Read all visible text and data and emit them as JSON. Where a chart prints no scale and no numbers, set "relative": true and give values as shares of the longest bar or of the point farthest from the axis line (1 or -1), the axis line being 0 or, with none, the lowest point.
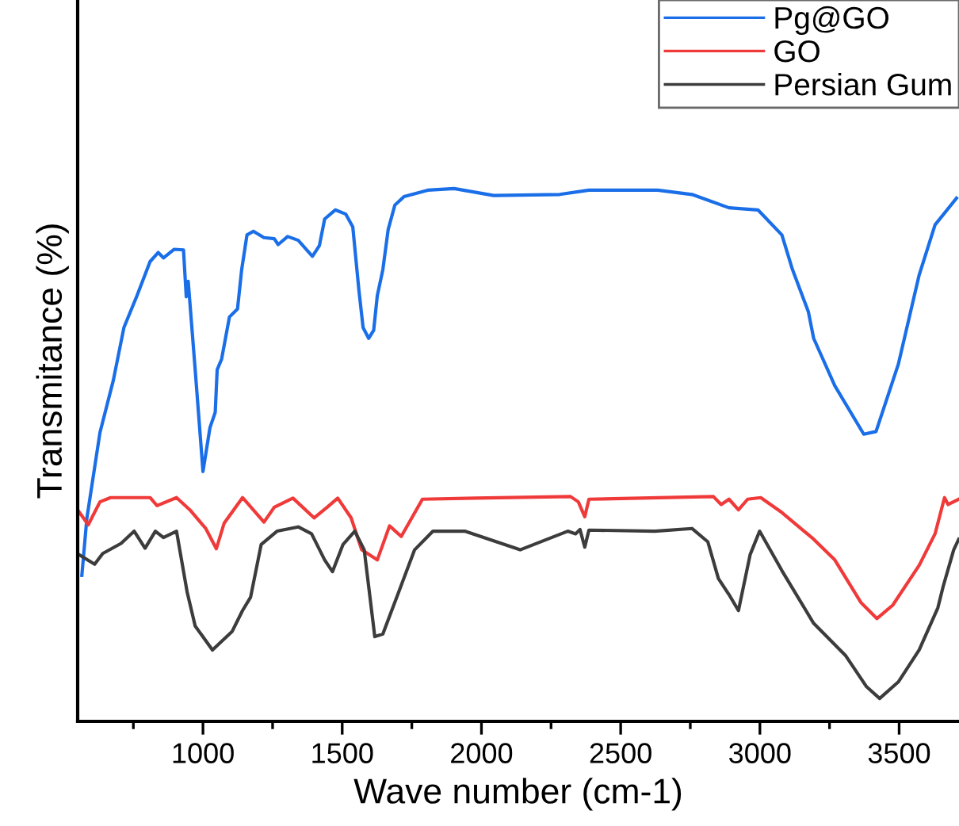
{
  "chart_data": {
    "type": "line",
    "xlabel": "Wave number (cm-1)",
    "ylabel": "Transmitance (%)",
    "relative": true,
    "legend": "top right",
    "grid": false,
    "xlim": [
      550,
      3715
    ],
    "xticks": [
      {
        "value": 750,
        "label": null
      },
      1000,
      {
        "value": 1250,
        "label": null
      },
      1500,
      {
        "value": 1750,
        "label": null
      },
      2000,
      {
        "value": 2250,
        "label": null
      },
      2500,
      {
        "value": 2750,
        "label": null
      },
      3000,
      {
        "value": 3250,
        "label": null
      },
      3500
    ],
    "series": [
      {
        "name": "Pg@GO",
        "color": "#1a6ee8",
        "x": [
          565,
          583,
          630,
          678,
          716,
          763,
          810,
          839,
          858,
          896,
          930,
          940,
          947,
          972,
          1000,
          1025,
          1044,
          1051,
          1067,
          1095,
          1124,
          1139,
          1158,
          1181,
          1219,
          1256,
          1270,
          1304,
          1342,
          1393,
          1418,
          1437,
          1475,
          1513,
          1538,
          1560,
          1575,
          1595,
          1613,
          1626,
          1646,
          1665,
          1689,
          1722,
          1807,
          1902,
          2044,
          2281,
          2386,
          2633,
          2756,
          2889,
          2993,
          3079,
          3117,
          3174,
          3193,
          3269,
          3373,
          3417,
          3497,
          3572,
          3629,
          3706
        ],
        "values": [
          0.274,
          0.381,
          0.542,
          0.64,
          0.739,
          0.799,
          0.863,
          0.88,
          0.87,
          0.886,
          0.885,
          0.797,
          0.826,
          0.66,
          0.469,
          0.551,
          0.58,
          0.66,
          0.68,
          0.759,
          0.774,
          0.848,
          0.913,
          0.92,
          0.908,
          0.906,
          0.895,
          0.91,
          0.903,
          0.873,
          0.893,
          0.943,
          0.96,
          0.952,
          0.928,
          0.809,
          0.739,
          0.719,
          0.734,
          0.799,
          0.848,
          0.923,
          0.969,
          0.985,
          0.997,
          1.0,
          0.987,
          0.989,
          0.997,
          0.997,
          0.989,
          0.964,
          0.96,
          0.913,
          0.848,
          0.769,
          0.719,
          0.63,
          0.539,
          0.544,
          0.67,
          0.838,
          0.932,
          0.982
        ]
      },
      {
        "name": "GO",
        "color": "#f03a3a",
        "x": [
          554,
          588,
          630,
          668,
          810,
          835,
          905,
          953,
          1010,
          1048,
          1076,
          1142,
          1219,
          1256,
          1323,
          1399,
          1446,
          1484,
          1532,
          1570,
          1626,
          1670,
          1712,
          1750,
          1788,
          1978,
          2320,
          2348,
          2371,
          2386,
          2833,
          2861,
          2889,
          2923,
          2956,
          3003,
          3079,
          3193,
          3269,
          3363,
          3420,
          3477,
          3572,
          3629,
          3663,
          3676,
          3714
        ],
        "values": [
          0.394,
          0.369,
          0.412,
          0.42,
          0.42,
          0.405,
          0.42,
          0.397,
          0.362,
          0.324,
          0.372,
          0.42,
          0.374,
          0.402,
          0.419,
          0.382,
          0.402,
          0.419,
          0.382,
          0.322,
          0.303,
          0.367,
          0.347,
          0.382,
          0.417,
          0.419,
          0.422,
          0.412,
          0.384,
          0.417,
          0.422,
          0.407,
          0.417,
          0.397,
          0.417,
          0.42,
          0.392,
          0.342,
          0.303,
          0.223,
          0.193,
          0.218,
          0.293,
          0.352,
          0.42,
          0.407,
          0.417
        ]
      },
      {
        "name": "Persian Gum",
        "color": "#3c3c3c",
        "x": [
          554,
          611,
          640,
          706,
          753,
          792,
          829,
          858,
          905,
          943,
          972,
          1034,
          1105,
          1142,
          1171,
          1209,
          1266,
          1342,
          1390,
          1437,
          1465,
          1503,
          1545,
          1579,
          1617,
          1646,
          1703,
          1760,
          1826,
          1940,
          2139,
          2310,
          2338,
          2354,
          2371,
          2386,
          2623,
          2756,
          2813,
          2851,
          2889,
          2923,
          2965,
          2999,
          3079,
          3193,
          3307,
          3383,
          3430,
          3497,
          3572,
          3639,
          3658,
          3696,
          3714
        ],
        "values": [
          0.313,
          0.295,
          0.315,
          0.334,
          0.357,
          0.325,
          0.357,
          0.345,
          0.357,
          0.243,
          0.179,
          0.134,
          0.169,
          0.208,
          0.233,
          0.332,
          0.357,
          0.365,
          0.352,
          0.303,
          0.281,
          0.332,
          0.357,
          0.322,
          0.159,
          0.164,
          0.243,
          0.322,
          0.357,
          0.357,
          0.322,
          0.357,
          0.352,
          0.36,
          0.327,
          0.359,
          0.357,
          0.362,
          0.337,
          0.268,
          0.238,
          0.208,
          0.313,
          0.357,
          0.283,
          0.184,
          0.124,
          0.065,
          0.043,
          0.074,
          0.134,
          0.213,
          0.253,
          0.322,
          0.342
        ]
      }
    ]
  }
}
